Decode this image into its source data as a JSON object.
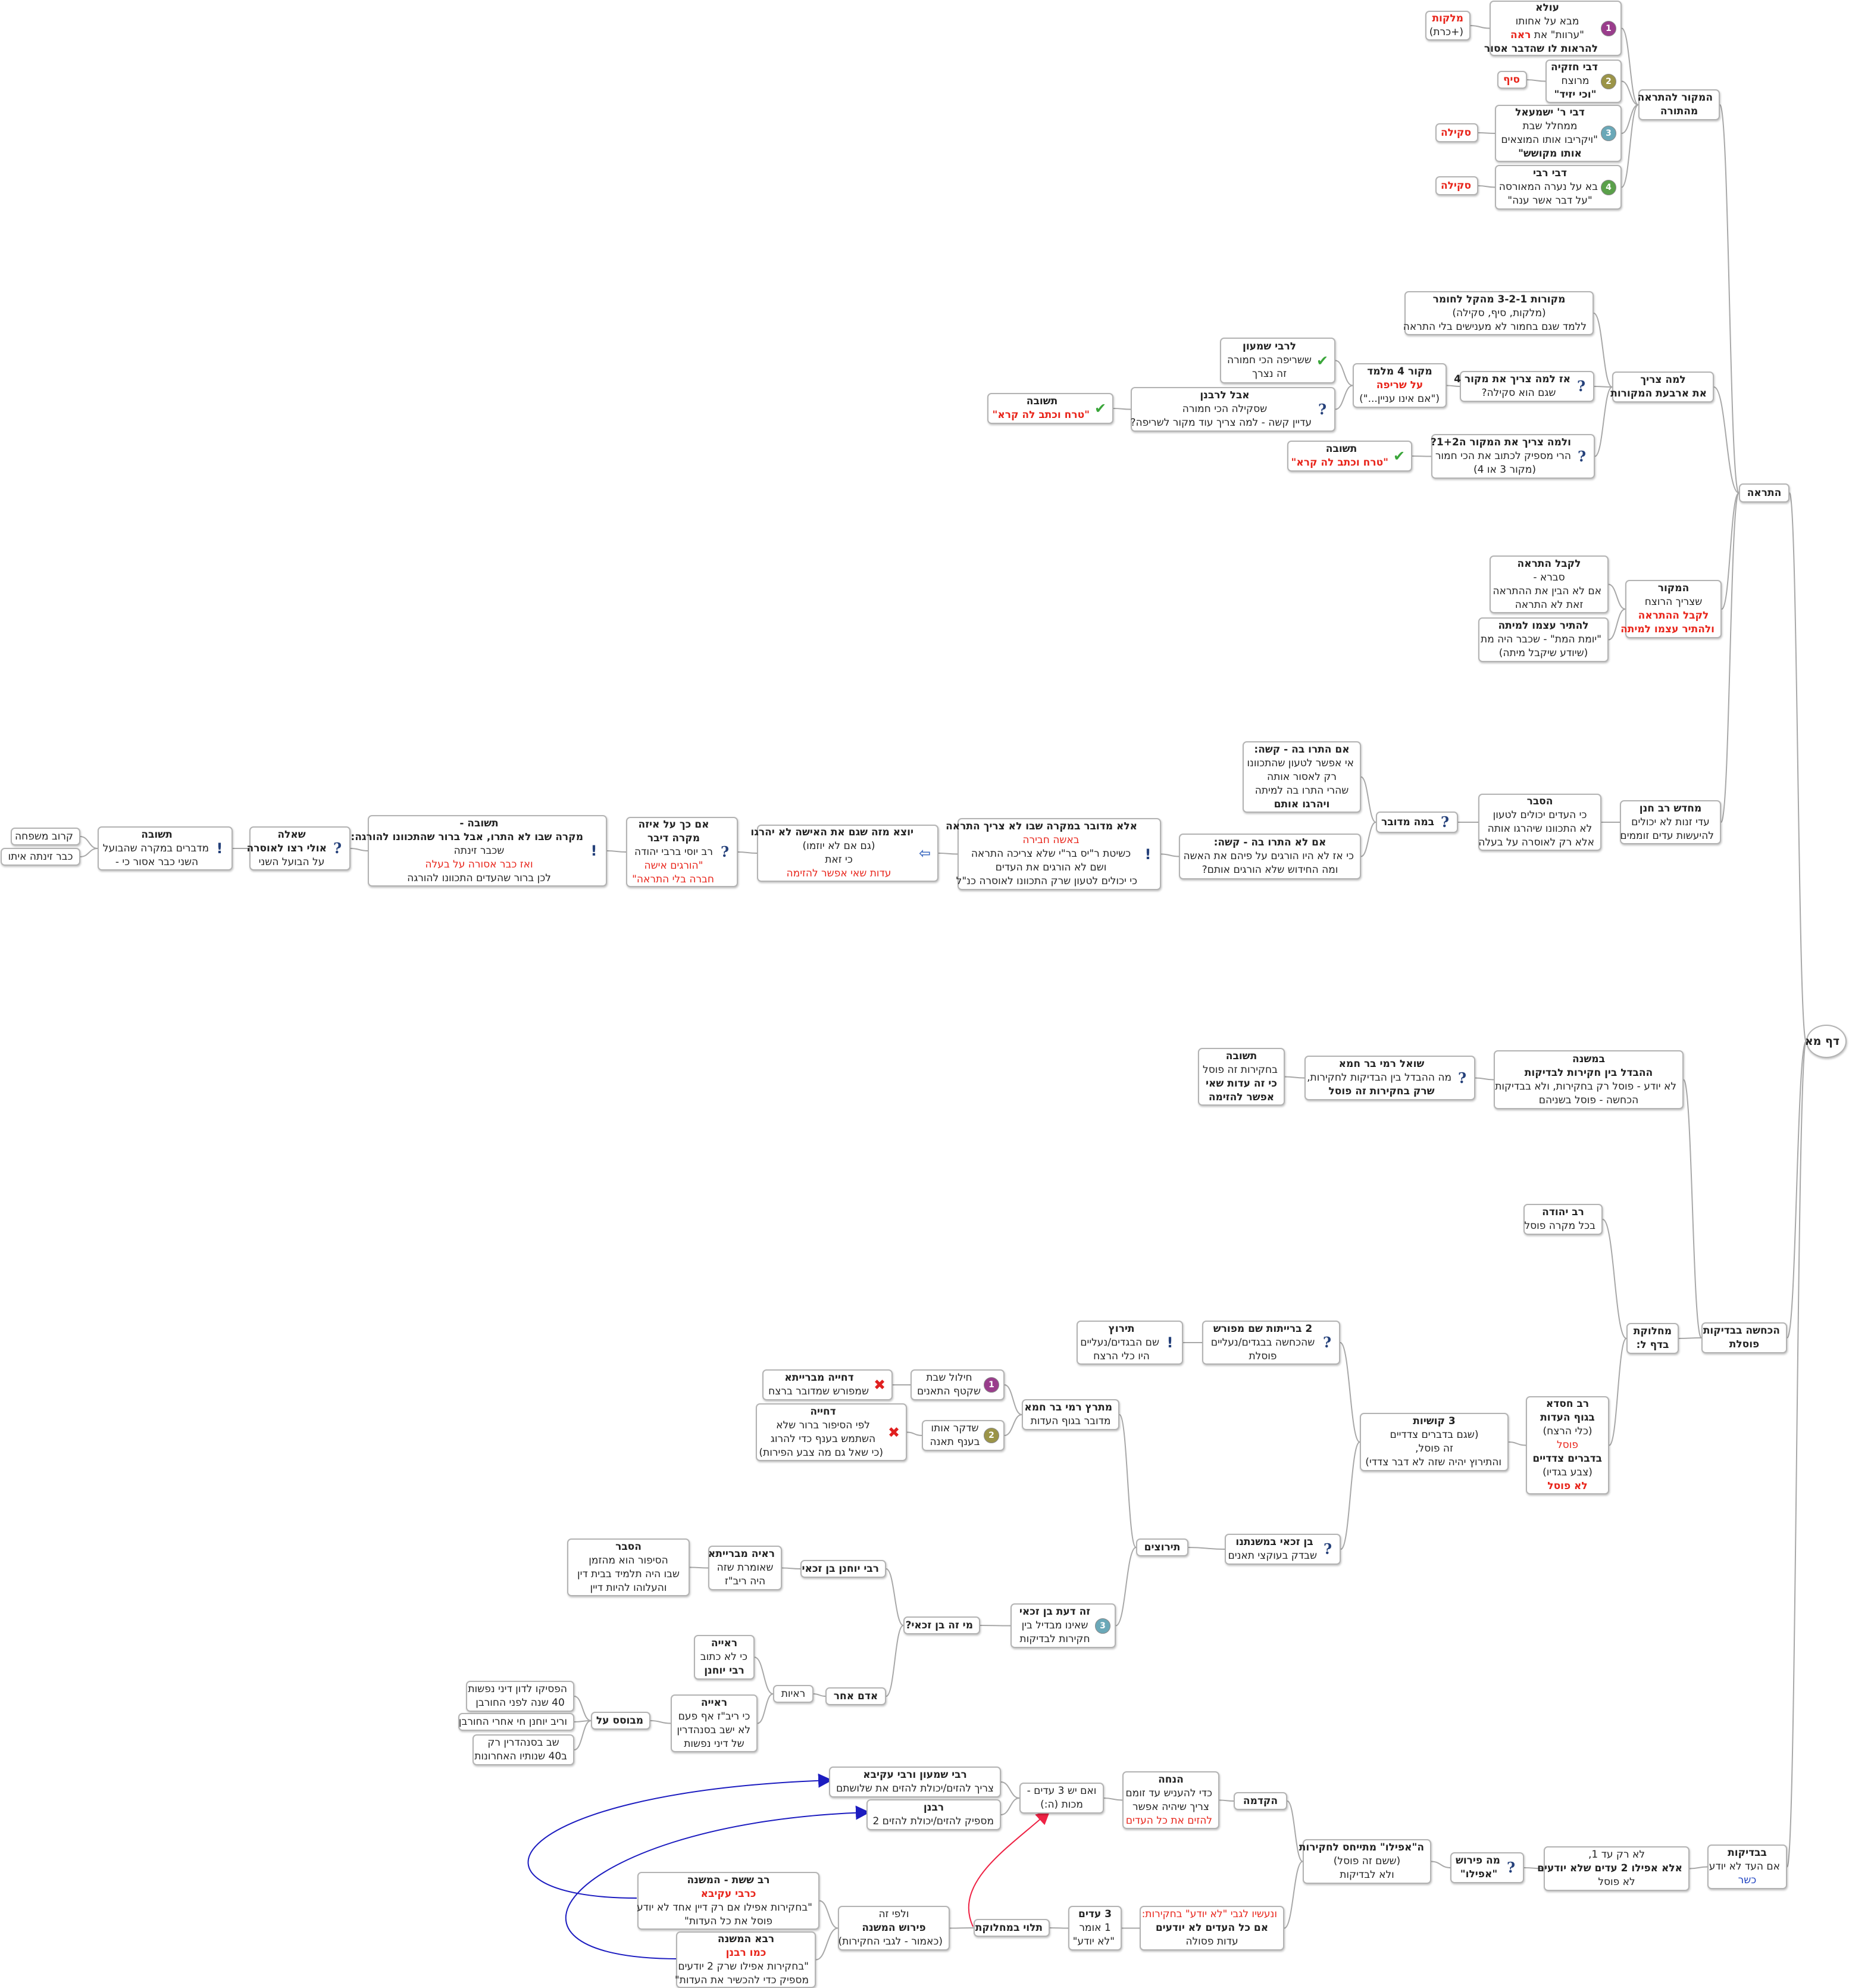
{
  "root": {
    "label": "דף מא"
  },
  "nodes": {
    "hatraa": [
      "התראה"
    ],
    "makor_hatraa": [
      "המקור להתראה",
      "מהתורה"
    ],
    "ula": [
      "עולא",
      "מבא על אחותו",
      "\"ערוות\" את ",
      "ראה",
      "להראות לו שהדבר אסור"
    ],
    "malkot": [
      "מלקות",
      "(+כרת)"
    ],
    "chizkia": [
      "דבי חזקיה",
      "מרוצח",
      "\"וכי יזיד\""
    ],
    "sayif": [
      "סיף"
    ],
    "yishmael": [
      "דבי ר' ישמעאל",
      "ממחלל שבת",
      "\"ויקריבו אותו המוצאים",
      "אותו מקושש\""
    ],
    "skila1": [
      "סקילה"
    ],
    "rebbi": [
      "דבי רבי",
      "בא על נערה המאורסה",
      "\"על דבר  אשר ענה\""
    ],
    "skila2": [
      "סקילה"
    ],
    "lama_arba": [
      "למה צריך",
      "את ארבעת המקורות"
    ],
    "mekorot": [
      "מקורות 3-2-1 מהקל לחומר",
      "(מלקות, סיף, סקילה)",
      "ללמד שגם בחמור לא מענישים בלי התראה"
    ],
    "makor4": [
      "אז למה צריך את מקור 4",
      "שגם הוא סקילה?"
    ],
    "makor4_melamed": [
      "מקור 4 מלמד",
      "על שריפה",
      "(\"אם אינו עניין...\")"
    ],
    "rabbi_shimon": [
      "לרבי שמעון",
      "ששריפה הכי חמורה",
      "זה נצרך"
    ],
    "rabanan_q": [
      "אבל לרבנן",
      "שסקילה הכי חמורה",
      "עדיין קשה - למה צריך עוד מקור לשריפה?"
    ],
    "teshuva1": [
      "תשובה",
      "\"טרח וכתב לה קרא\""
    ],
    "ulama12": [
      "ולמה צריך את המקור ה1+2?",
      "הרי מספיק לכתוב את הכי חמור",
      "(מקור 3 או 4)"
    ],
    "teshuva2": [
      "תשובה",
      "\"טרח וכתב לה קרא\""
    ],
    "hamakor": [
      "המקור",
      "שצריך הרוצח",
      "לקבל ההתראה",
      "ולהתיר עצמו למיתה"
    ],
    "lekabel": [
      "לקבל התראה",
      "סברא -",
      "אם לא הבין את ההתראה",
      "זאת לא התראה"
    ],
    "lehatir": [
      "להתיר עצמו למיתה",
      "\"יומת המת\" - שכבר היה מת",
      "(שיודע שיקבל מיתה)"
    ],
    "mechadesh": [
      "מחדש רב חנן",
      "עדי זנות לא יכולים",
      "להיעשות עדים זוממים"
    ],
    "hesber": [
      "הסבר",
      "כי העדים יכולים לטעון",
      "לא התכוונו שיהרגו אותה",
      "אלא רק לאוסרה  על בעלה"
    ],
    "bama_medubar": [
      "במה מדובר"
    ],
    "im_hitru": [
      "אם התרו בה - קשה:",
      "אי אפשר לטעון שהתכוונו",
      "רק לאסור אותה",
      "שהרי התרו בה למיתה",
      "ויהרגו אותם"
    ],
    "im_lo_hitru": [
      "אם לא התרו בה - קשה:",
      "כי אז לא היו הורגים על פיהם את האשה",
      "ומה החידוש שלא הורגים אותם?"
    ],
    "ela_medubar": [
      "אלא מדובר במקרה שבו לא צריך התראה",
      "באשה חבירה",
      "כשיטת ר\"יס בר\"י שלא צריכה התראה",
      "ושם לא הורגים את העדים",
      "כי יכולים לטעון שרק התכוונו לאוסרה כנ\"ל"
    ],
    "yotze": [
      "יוצא מזה שגם את האישה לא יהרגו",
      "(גם אם לא יוזמו)",
      "כי זאת",
      "עדות שאי אפשר להזימה"
    ],
    "im_kach": [
      "אם כך על איזה",
      "מקרה דיבר",
      "רב יוסי ברבי יהודה",
      "\"הורגים אישה",
      "חברה בלי התראה\""
    ],
    "teshuva_mikre": [
      "תשובה -",
      "מקרה שבו לא התרו, אבל ברור שהתכוונו להורגה:",
      "שכבר זינתה",
      "ואז כבר אסורה על בעלה",
      "לכן ברור שהעדים  התכוונו להורגה"
    ],
    "sheela": [
      "שאלה",
      "אולי רצו לאוסרה",
      "על הבועל השני"
    ],
    "teshuva_boel": [
      "תשובה",
      "מדברים במקרה שהבועל",
      "השני כבר אסור כי -"
    ],
    "karov": [
      "קרוב משפחה"
    ],
    "kvar_zinta": [
      "כבר זינתה איתו"
    ],
    "hakchasha": [
      "הכחשה בבדיקות",
      "פוסלת"
    ],
    "mishna": [
      "במשנה",
      "ההבדל בין חקירות לבדיקות",
      "לא יודע - פוסל רק בחקירות, ולא בבדיקות",
      "הכחשה  - פוסל בשניהם"
    ],
    "shoel": [
      "שואל רמי בר חמא",
      "מה ההבדל בין הבדיקות לחקירות,",
      "שרק בחקירות זה פוסל"
    ],
    "teshuva_adut": [
      "תשובה",
      "בחקירות זה פוסל",
      "כי זה עדות שאי",
      "אפשר להזימה"
    ],
    "machloket": [
      "מחלוקת",
      "בדף ל:"
    ],
    "rav_yehuda": [
      "רב יהודה",
      "בכל מקרה פוסל"
    ],
    "rav_chisda": [
      "רב חסדא",
      "בגוף העדות",
      "(כלי הרצח)",
      "פוסל",
      "בדברים צדדיים",
      "(צבע בגדיו)",
      "לא פוסל"
    ],
    "shalosh_kushiot": [
      "3 קושיות",
      "(שגם בדברים צדדיים",
      "זה פוסל,",
      "והתירוץ יהיה שזה לא דבר צדדי)"
    ],
    "breitot": [
      "2 ברייתות שם מפורש",
      "שהכחשה בבגדים/נעליים",
      "פוסלת"
    ],
    "tirutz": [
      "תירוץ",
      "שם הבגדים/נעליים",
      "היו כלי הרצח"
    ],
    "ben_zakai": [
      "בן זכאי  במשנתנו",
      "שבדק בעוקצי תאנים"
    ],
    "tirutzim": [
      "תירוצים"
    ],
    "metaretz": [
      "מתרץ רמי בר חמא",
      "מדובר בגוף העדות"
    ],
    "chilul": [
      "חילול שבת",
      "שקטף התאנים"
    ],
    "dchiya_brayta": [
      "דחייה מברייתא",
      "שמפורש שמדובר ברצח"
    ],
    "shedakar": [
      "שדקר אותו",
      "בענף תאנה"
    ],
    "dchiya": [
      "דחייה",
      "לפי הסיפור ברור שלא",
      "השתמש בענף כדי להרוג",
      "(כי שאל גם מה צבע הפירות)"
    ],
    "daat_ben_zakai": [
      "זה דעת בן זכאי",
      "שאינו מבדיל בין",
      "חקירות לבדיקות"
    ],
    "mi_ben_zakai": [
      "מי זה בן זכאי?"
    ],
    "rabbi_yochanan": [
      "רבי יוחנן בן זכאי"
    ],
    "raaya_brayta": [
      "ראיה מברייתא",
      "שאומרת שזה",
      "היה ריב\"ז"
    ],
    "hesber2": [
      "הסבר",
      "הסיפור הוא מהזמן",
      "שבו היה תלמיד בבית  דין",
      "והעלוהו להיות דיין"
    ],
    "adam_acher": [
      "אדם אחר"
    ],
    "raayot": [
      "ראיות"
    ],
    "raaya_lo_katuv": [
      "ראייה",
      "כי לא כתוב",
      "רבי יוחנן"
    ],
    "raaya_ribaz": [
      "ראייה",
      "כי ריב\"ז אף פעם",
      "לא ישב בסנהדרין",
      "של דיני נפשות"
    ],
    "mevusas": [
      "מבוסס על"
    ],
    "hifsiku": [
      "הפסיקו לדון דיני נפשות",
      "40 שנה לפני החורבן"
    ],
    "ribaz_chai": [
      "וריב יוחנן חי אחרי החורבן"
    ],
    "shev": [
      "שב בסנהדרין רק",
      "ב40 שנותיו האחרונות"
    ],
    "bdikot": [
      "בבדיקות",
      "אם העד לא יודע",
      "כשר"
    ],
    "lo_rak": [
      "לא רק עד 1,",
      "אלא  אפילו 2 עדים שלא יודעים",
      "לא פוסל"
    ],
    "ma_perush": [
      "מה פירוש",
      "\"אפילו\""
    ],
    "afilu": [
      "ה\"אפילו\" מתייחס לחקירות",
      "(ששם זה פוסל)",
      "ולא לבדיקות"
    ],
    "vanaase": [
      "ונעשיו לגבי \"לא יודע\" בחקירות:",
      "אם כל העדים לא יודעים",
      "עדות פסולה"
    ],
    "hakdama": [
      "הקדמה"
    ],
    "hanacha": [
      "הנחה",
      "כדי להעניש עד זומם",
      "צריך שיהיה אפשר",
      "להזים את כל העדים"
    ],
    "veim_yesh": [
      "ואם יש 3 עדים -",
      "מכות (ה:)"
    ],
    "shimon_akiva": [
      "רבי שמעון ורבי עקיבא",
      "צריך להזים/יכולת להזים  את שלושתם"
    ],
    "rabanan": [
      "רבנן",
      "מספיק להזים/יכולת להזים  2"
    ],
    "shlosha_edim": [
      "3 עדים",
      "1 אומר",
      "\"לא יודע\""
    ],
    "tluyei": [
      "תלוי במחלוקת"
    ],
    "velefi": [
      "ולפי זה",
      "פירוש המשנה",
      "(כאמור - לגבי החקירות)"
    ],
    "rav_sheshet": [
      "רב ששת - המשנה",
      "כרבי עקיבא",
      "\"בחקירות אפילו אם רק דיין אחד לא יודע",
      "פוסל את כל העדות\""
    ],
    "rava": [
      "רבא המשנה",
      "כמו רבנן",
      "\"בחקירות אפילו שרק 2 יודעים",
      "מספיק כדי להכשיר את העדות\""
    ]
  }
}
